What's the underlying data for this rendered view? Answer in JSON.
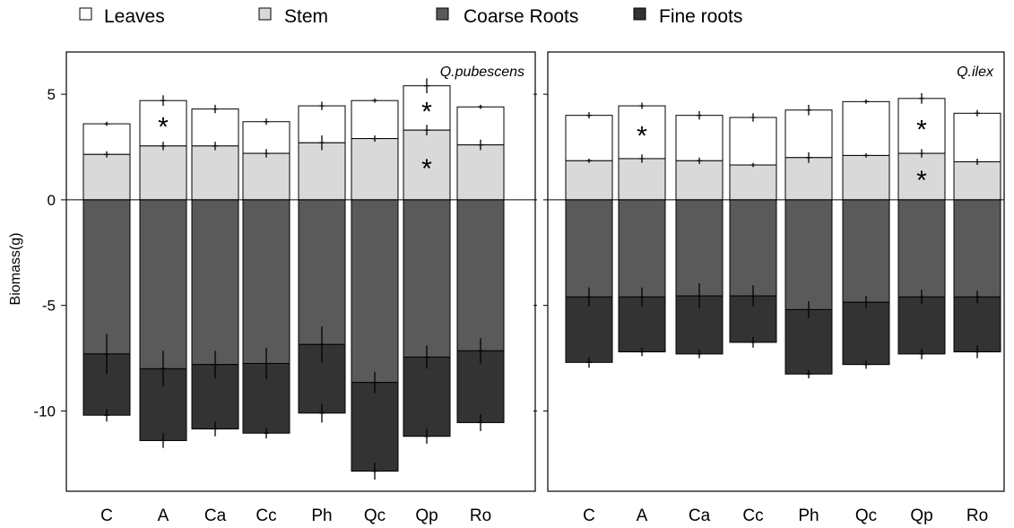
{
  "legend": {
    "items": [
      {
        "label": "Leaves",
        "color": "#ffffff"
      },
      {
        "label": "Stem",
        "color": "#d9d9d9"
      },
      {
        "label": "Coarse Roots",
        "color": "#5a5a5a"
      },
      {
        "label": "Fine roots",
        "color": "#333333"
      }
    ]
  },
  "chart_data": [
    {
      "type": "bar",
      "title": "Q.pubescens",
      "ylabel": "Biomass(g)",
      "ylim": [
        -13.8,
        7
      ],
      "yticks": [
        5,
        0,
        -5,
        -10
      ],
      "categories": [
        "C",
        "A",
        "Ca",
        "Cc",
        "Ph",
        "Qc",
        "Qp",
        "Ro"
      ],
      "series": [
        {
          "name": "Leaves",
          "bottom": [
            2.15,
            2.55,
            2.55,
            2.2,
            2.7,
            2.9,
            3.3,
            2.6
          ],
          "top": [
            3.6,
            4.7,
            4.3,
            3.7,
            4.45,
            4.7,
            5.4,
            4.4
          ],
          "err": [
            0.1,
            0.25,
            0.2,
            0.15,
            0.2,
            0.1,
            0.35,
            0.1
          ]
        },
        {
          "name": "Stem",
          "bottom": [
            0,
            0,
            0,
            0,
            0,
            0,
            0,
            0
          ],
          "top": [
            2.15,
            2.55,
            2.55,
            2.2,
            2.7,
            2.9,
            3.3,
            2.6
          ],
          "err": [
            0.15,
            0.2,
            0.2,
            0.2,
            0.35,
            0.15,
            0.25,
            0.25
          ]
        },
        {
          "name": "Coarse Roots",
          "bottom": [
            -7.3,
            -8.0,
            -7.8,
            -7.75,
            -6.85,
            -8.65,
            -7.45,
            -7.15
          ],
          "top": [
            0,
            0,
            0,
            0,
            0,
            0,
            0,
            0
          ],
          "err": [
            0.95,
            0.85,
            0.65,
            0.75,
            0.85,
            0.5,
            0.55,
            0.6
          ]
        },
        {
          "name": "Fine roots",
          "bottom": [
            -10.2,
            -11.4,
            -10.85,
            -11.05,
            -10.1,
            -12.85,
            -11.2,
            -10.55
          ],
          "top": [
            -7.3,
            -8.0,
            -7.8,
            -7.75,
            -6.85,
            -8.65,
            -7.45,
            -7.15
          ],
          "err": [
            0.3,
            0.35,
            0.35,
            0.25,
            0.45,
            0.4,
            0.35,
            0.4
          ]
        }
      ],
      "significance": [
        {
          "category": "A",
          "series": "Leaves",
          "mark": "*"
        },
        {
          "category": "Qp",
          "series": "Leaves",
          "mark": "*"
        },
        {
          "category": "Qp",
          "series": "Stem",
          "mark": "*"
        }
      ]
    },
    {
      "type": "bar",
      "title": "Q.ilex",
      "ylabel": "",
      "ylim": [
        -13.8,
        7
      ],
      "yticks": [
        5,
        0,
        -5,
        -10
      ],
      "categories": [
        "C",
        "A",
        "Ca",
        "Cc",
        "Ph",
        "Qc",
        "Qp",
        "Ro"
      ],
      "series": [
        {
          "name": "Leaves",
          "bottom": [
            1.85,
            1.95,
            1.85,
            1.65,
            2.0,
            2.1,
            2.2,
            1.8
          ],
          "top": [
            4.0,
            4.45,
            4.0,
            3.9,
            4.25,
            4.65,
            4.8,
            4.1
          ],
          "err": [
            0.15,
            0.15,
            0.2,
            0.2,
            0.25,
            0.1,
            0.25,
            0.15
          ]
        },
        {
          "name": "Stem",
          "bottom": [
            0,
            0,
            0,
            0,
            0,
            0,
            0,
            0
          ],
          "top": [
            1.85,
            1.95,
            1.85,
            1.65,
            2.0,
            2.1,
            2.2,
            1.8
          ],
          "err": [
            0.1,
            0.2,
            0.15,
            0.1,
            0.25,
            0.1,
            0.2,
            0.15
          ]
        },
        {
          "name": "Coarse Roots",
          "bottom": [
            -4.6,
            -4.6,
            -4.55,
            -4.55,
            -5.2,
            -4.85,
            -4.6,
            -4.6
          ],
          "top": [
            0,
            0,
            0,
            0,
            0,
            0,
            0,
            0
          ],
          "err": [
            0.45,
            0.45,
            0.6,
            0.5,
            0.4,
            0.3,
            0.35,
            0.3
          ]
        },
        {
          "name": "Fine roots",
          "bottom": [
            -7.7,
            -7.2,
            -7.3,
            -6.75,
            -8.25,
            -7.8,
            -7.3,
            -7.2
          ],
          "top": [
            -4.6,
            -4.6,
            -4.55,
            -4.55,
            -5.2,
            -4.85,
            -4.6,
            -4.6
          ],
          "err": [
            0.25,
            0.2,
            0.2,
            0.25,
            0.2,
            0.2,
            0.25,
            0.3
          ]
        }
      ],
      "significance": [
        {
          "category": "A",
          "series": "Leaves",
          "mark": "*"
        },
        {
          "category": "Qp",
          "series": "Leaves",
          "mark": "*"
        },
        {
          "category": "Qp",
          "series": "Stem",
          "mark": "*"
        }
      ]
    }
  ]
}
